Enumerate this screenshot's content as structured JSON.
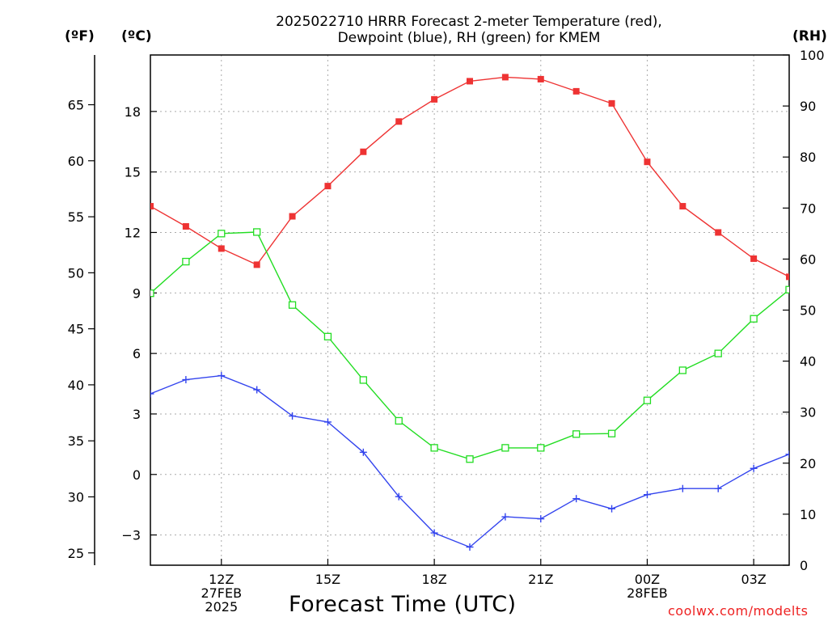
{
  "titles": {
    "line1": "2025022710 HRRR Forecast 2-meter Temperature (red),",
    "line2": "Dewpoint (blue), RH (green) for KMEM"
  },
  "axes": {
    "units_f": "(ºF)",
    "units_c": "(ºC)",
    "units_rh": "(RH)",
    "xlabel": "Forecast Time (UTC)",
    "credit": "coolwx.com/modelts"
  },
  "chart_data": {
    "type": "line",
    "title": "2025022710 HRRR Forecast 2-meter Temperature (red), Dewpoint (blue), RH (green) for KMEM",
    "xlabel": "Forecast Time (UTC)",
    "x_hours_utc": [
      10,
      11,
      12,
      13,
      14,
      15,
      16,
      17,
      18,
      19,
      20,
      21,
      22,
      23,
      24,
      25,
      26,
      27,
      28
    ],
    "x_range": [
      10,
      28
    ],
    "x_ticks": [
      {
        "hour": 12,
        "lines": [
          "12Z",
          "27FEB",
          "2025"
        ]
      },
      {
        "hour": 15,
        "lines": [
          "15Z"
        ]
      },
      {
        "hour": 18,
        "lines": [
          "18Z"
        ]
      },
      {
        "hour": 21,
        "lines": [
          "21Z"
        ]
      },
      {
        "hour": 24,
        "lines": [
          "00Z",
          "28FEB"
        ]
      },
      {
        "hour": 27,
        "lines": [
          "03Z"
        ]
      }
    ],
    "y_left_c": {
      "label": "(ºC)",
      "range": [
        -4.5,
        20.8
      ],
      "ticks": [
        -3,
        0,
        3,
        6,
        9,
        12,
        15,
        18
      ],
      "tick_labels": [
        "−3",
        "0",
        "3",
        "6",
        "9",
        "12",
        "15",
        "18"
      ]
    },
    "y_far_left_f": {
      "label": "(ºF)",
      "ticks": [
        25,
        30,
        35,
        40,
        45,
        50,
        55,
        60,
        65
      ]
    },
    "y_right_rh": {
      "label": "(RH)",
      "range": [
        0,
        100
      ],
      "ticks": [
        0,
        10,
        20,
        30,
        40,
        50,
        60,
        70,
        80,
        90,
        100
      ]
    },
    "grid": true,
    "series": [
      {
        "name": "Temperature (red)",
        "axis": "c",
        "color": "#ee3333",
        "marker": "filled-square",
        "values": [
          13.3,
          12.3,
          11.2,
          10.4,
          12.8,
          14.3,
          16.0,
          17.5,
          18.6,
          19.5,
          19.7,
          19.6,
          19.0,
          18.4,
          15.5,
          13.3,
          12.0,
          10.7,
          9.8
        ]
      },
      {
        "name": "Dewpoint (blue)",
        "axis": "c",
        "color": "#3344ee",
        "marker": "plus",
        "values": [
          4.0,
          4.7,
          4.9,
          4.2,
          2.9,
          2.6,
          1.1,
          -1.1,
          -2.9,
          -3.6,
          -2.1,
          -2.2,
          -1.2,
          -1.7,
          -1.0,
          -0.7,
          -0.7,
          0.3,
          1.0
        ]
      },
      {
        "name": "RH (green)",
        "axis": "rh",
        "color": "#22dd22",
        "marker": "open-square",
        "values": [
          53.3,
          59.5,
          65.0,
          65.3,
          51.0,
          44.8,
          36.3,
          28.3,
          23.0,
          20.8,
          23.0,
          23.0,
          25.7,
          25.8,
          32.3,
          38.2,
          41.5,
          48.3,
          54.0
        ]
      }
    ]
  }
}
